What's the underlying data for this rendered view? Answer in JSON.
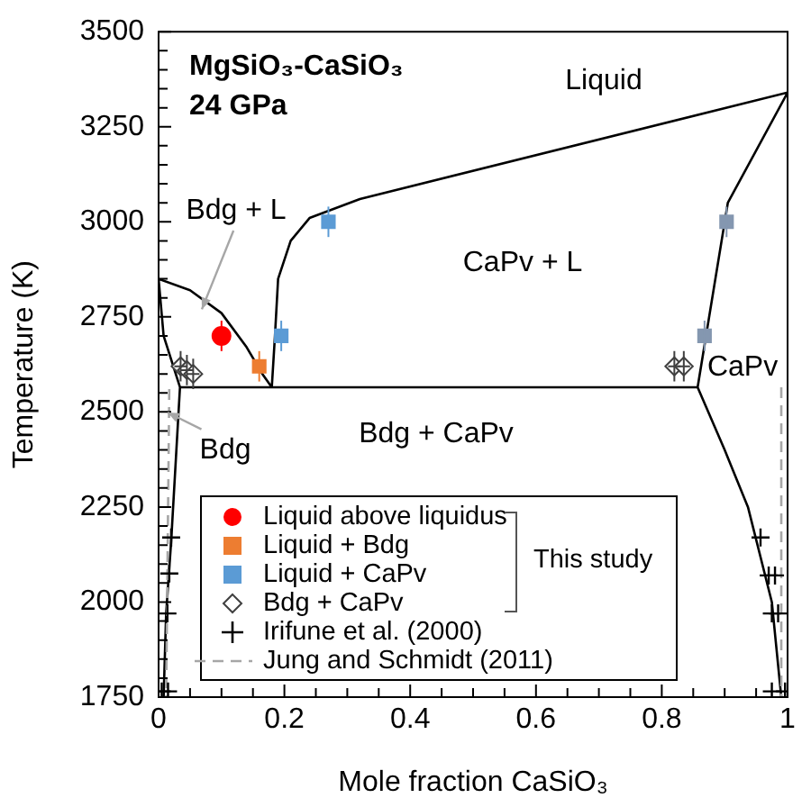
{
  "chart_data": {
    "type": "scatter",
    "title": "MgSiO₃-CaSiO₃",
    "subtitle": "24 GPa",
    "xlabel": "Mole fraction CaSiO₃",
    "ylabel": "Temperature (K)",
    "xlim": [
      0,
      1
    ],
    "xticks": [
      0,
      {
        "value": 0.05,
        "label": null
      },
      {
        "value": 0.1,
        "label": null
      },
      {
        "value": 0.15,
        "label": null
      },
      0.2,
      {
        "value": 0.25,
        "label": null
      },
      {
        "value": 0.3,
        "label": null
      },
      {
        "value": 0.35,
        "label": null
      },
      0.4,
      {
        "value": 0.45,
        "label": null
      },
      {
        "value": 0.5,
        "label": null
      },
      {
        "value": 0.55,
        "label": null
      },
      0.6,
      {
        "value": 0.65,
        "label": null
      },
      {
        "value": 0.7,
        "label": null
      },
      {
        "value": 0.75,
        "label": null
      },
      0.8,
      {
        "value": 0.85,
        "label": null
      },
      {
        "value": 0.9,
        "label": null
      },
      {
        "value": 0.95,
        "label": null
      },
      1
    ],
    "ylim": [
      1750,
      3500
    ],
    "yticks": [
      1750,
      {
        "value": 1800,
        "label": null
      },
      {
        "value": 1850,
        "label": null
      },
      {
        "value": 1900,
        "label": null
      },
      {
        "value": 1950,
        "label": null
      },
      2000,
      {
        "value": 2050,
        "label": null
      },
      {
        "value": 2100,
        "label": null
      },
      {
        "value": 2150,
        "label": null
      },
      {
        "value": 2200,
        "label": null
      },
      2250,
      {
        "value": 2300,
        "label": null
      },
      {
        "value": 2350,
        "label": null
      },
      {
        "value": 2400,
        "label": null
      },
      {
        "value": 2450,
        "label": null
      },
      2500,
      {
        "value": 2550,
        "label": null
      },
      {
        "value": 2600,
        "label": null
      },
      {
        "value": 2650,
        "label": null
      },
      {
        "value": 2700,
        "label": null
      },
      2750,
      {
        "value": 2800,
        "label": null
      },
      {
        "value": 2850,
        "label": null
      },
      {
        "value": 2900,
        "label": null
      },
      {
        "value": 2950,
        "label": null
      },
      3000,
      {
        "value": 3050,
        "label": null
      },
      {
        "value": 3100,
        "label": null
      },
      {
        "value": 3150,
        "label": null
      },
      {
        "value": 3200,
        "label": null
      },
      3250,
      {
        "value": 3300,
        "label": null
      },
      {
        "value": 3350,
        "label": null
      },
      {
        "value": 3400,
        "label": null
      },
      {
        "value": 3450,
        "label": null
      },
      3500
    ],
    "grid": false,
    "legend": "bottom left",
    "series": [
      {
        "name": "Liquid above liquidus",
        "marker": "circle",
        "color": "#ff0000",
        "x": [
          0.1
        ],
        "values": [
          2700
        ],
        "errors": [
          40
        ]
      },
      {
        "name": "Liquid + Bdg",
        "marker": "square",
        "color": "#ed7d31",
        "x": [
          0.16
        ],
        "values": [
          2620
        ],
        "errors": [
          40
        ]
      },
      {
        "name": "Liquid + CaPv",
        "marker": "square",
        "color": "#5b9bd5",
        "x": [
          0.195,
          0.27
        ],
        "values": [
          2700,
          3000
        ],
        "errors": [
          40,
          40
        ]
      },
      {
        "name": "Bdg + CaPv",
        "marker": "diamond",
        "color": "#404040",
        "x": [
          0.035,
          0.045,
          0.055,
          0.82,
          0.835
        ],
        "values": [
          2620,
          2610,
          2600,
          2620,
          2620
        ],
        "errors": [
          40,
          40,
          40,
          40,
          40
        ],
        "xerrors": [
          0.01,
          0.01,
          0.01,
          0.01,
          0.01
        ]
      },
      {
        "name": "Irifune et al. (2000)",
        "marker": "cross",
        "color": "#000000",
        "x": [
          0.02,
          0.017,
          0.014,
          0.005,
          0.015,
          0.957,
          0.97,
          0.98,
          0.975,
          0.985,
          0.975,
          0.996
        ],
        "values": [
          2170,
          2075,
          1970,
          1765,
          1765,
          2170,
          2070,
          2070,
          1970,
          1970,
          1765,
          1765
        ]
      },
      {
        "name": "Jung and Schmidt (2011)",
        "type": "line",
        "marker": "none",
        "line_style": "dashed",
        "color": "#a6a6a6",
        "x": [
          0.017,
          0.012,
          null,
          0.99,
          0.99
        ],
        "values": [
          2560,
          1750,
          null,
          2565,
          1750
        ]
      },
      {
        "marker": "square",
        "color": "#8497b0",
        "x": [
          0.868,
          0.903
        ],
        "values": [
          2700,
          3000
        ],
        "errors": [
          40,
          40
        ],
        "xerrors": [
          0.01,
          0.01
        ]
      },
      {
        "type": "line",
        "marker": "none",
        "line_style": "solid",
        "color": "#000000",
        "x": [
          0,
          0.05,
          0.1,
          0.14,
          0.165,
          0.18,
          0.185,
          0.19,
          0.21,
          0.24,
          0.32,
          1,
          0.905,
          0.857,
          0.9,
          0.937,
          0.975,
          0.99,
          null,
          0,
          0.008,
          0.034,
          0.857,
          null,
          0.034,
          0.02,
          0.012,
          0.008
        ],
        "values": [
          2850,
          2820,
          2760,
          2670,
          2600,
          2565,
          2700,
          2850,
          2950,
          3010,
          3060,
          3340,
          3050,
          2565,
          2400,
          2250,
          2000,
          1750,
          null,
          2850,
          2700,
          2565,
          2565,
          null,
          2565,
          2160,
          1970,
          1750
        ]
      }
    ],
    "annotations": [
      "Liquid",
      "CaPv + L",
      {
        "text": "Bdg + L",
        "x": 0.07,
        "y": 2770
      },
      "Bdg + CaPv",
      {
        "text": "Bdg",
        "x": 0.015,
        "y": 2500
      },
      "CaPv",
      "This study"
    ]
  }
}
